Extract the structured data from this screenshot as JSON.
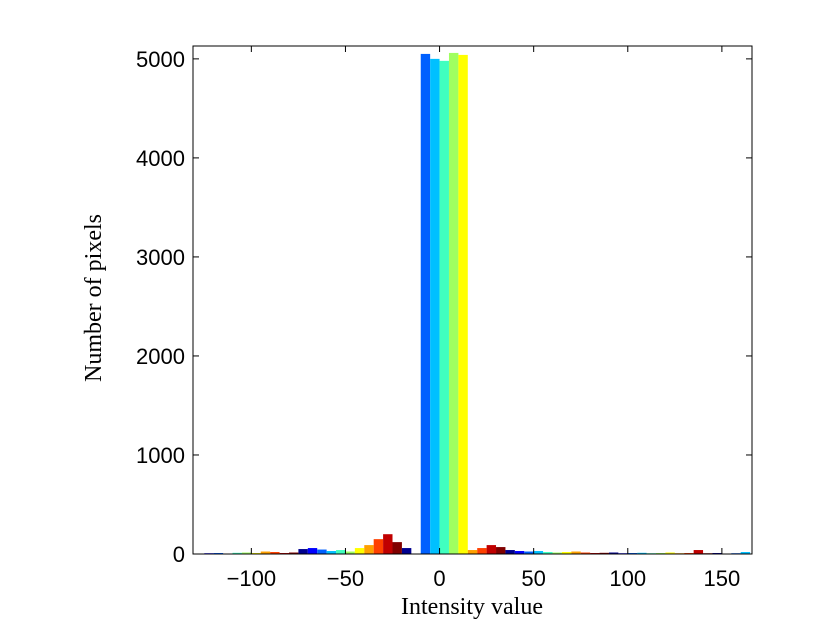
{
  "chart_data": {
    "type": "histogram",
    "xlabel": "Intensity value",
    "ylabel": "Number of pixels",
    "bins": [
      -130,
      -125,
      -120,
      -115,
      -110,
      -105,
      -100,
      -95,
      -90,
      -85,
      -80,
      -75,
      -70,
      -65,
      -60,
      -55,
      -50,
      -45,
      -40,
      -35,
      -30,
      -25,
      -20,
      -15,
      -10,
      -5,
      0,
      5,
      10,
      15,
      20,
      25,
      30,
      35,
      40,
      45,
      50,
      55,
      60,
      65,
      70,
      75,
      80,
      85,
      90,
      95,
      100,
      105,
      110,
      115,
      120,
      125,
      130,
      135,
      140,
      145,
      150,
      155,
      160,
      165
    ],
    "counts": [
      5,
      8,
      10,
      5,
      12,
      15,
      10,
      25,
      20,
      10,
      15,
      50,
      60,
      45,
      30,
      40,
      25,
      60,
      90,
      150,
      200,
      120,
      60,
      0,
      5050,
      5000,
      4980,
      5060,
      5040,
      40,
      60,
      90,
      70,
      40,
      30,
      25,
      30,
      20,
      15,
      20,
      25,
      15,
      10,
      12,
      15,
      8,
      10,
      12,
      8,
      10,
      15,
      8,
      10,
      40,
      8,
      10,
      5,
      8,
      20
    ],
    "colormap": [
      "#00008f",
      "#0000ff",
      "#0060ff",
      "#00c0ff",
      "#40ffbf",
      "#a0ff60",
      "#ffff00",
      "#ffa000",
      "#ff4000",
      "#c00000",
      "#800000"
    ],
    "xlim": [
      -131,
      166
    ],
    "ylim": [
      0,
      5130
    ],
    "xticks": [
      {
        "value": -100,
        "label": "−100"
      },
      {
        "value": -50,
        "label": "−50"
      },
      0,
      50,
      100,
      150
    ],
    "yticks": [
      0,
      1000,
      2000,
      3000,
      4000,
      5000
    ],
    "grid": false
  }
}
